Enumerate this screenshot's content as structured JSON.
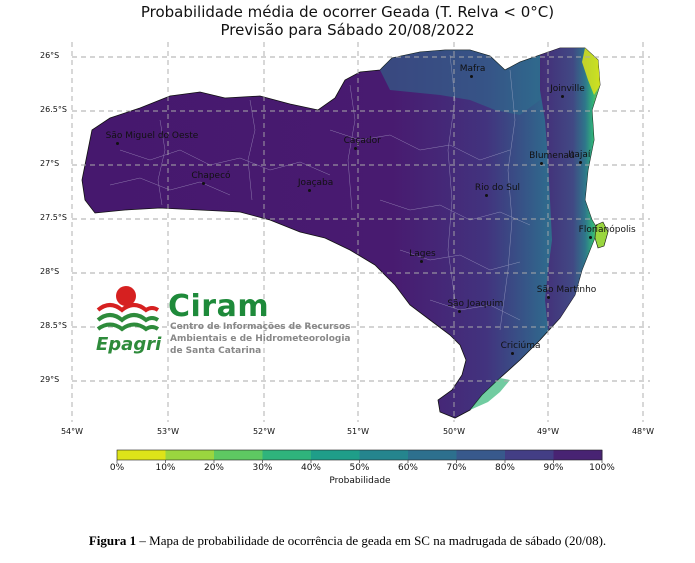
{
  "title_line1": "Probabilidade média de ocorrer Geada (T. Relva < 0°C)",
  "title_line2": "Previsão para Sábado 20/08/2022",
  "lat_ticks": [
    "26°S",
    "26.5°S",
    "27°S",
    "27.5°S",
    "28°S",
    "28.5°S",
    "29°S"
  ],
  "lon_ticks": [
    "54°W",
    "53°W",
    "52°W",
    "51°W",
    "50°W",
    "49°W",
    "48°W"
  ],
  "cities": [
    {
      "name": "Mafra",
      "lon": -49.8,
      "lat": -26.11
    },
    {
      "name": "Joinville",
      "lon": -48.85,
      "lat": -26.3
    },
    {
      "name": "São Miguel do Oeste",
      "lon": -53.52,
      "lat": -26.73
    },
    {
      "name": "Caçador",
      "lon": -51.02,
      "lat": -26.78
    },
    {
      "name": "Blumenau",
      "lon": -49.07,
      "lat": -26.92
    },
    {
      "name": "Itajaí",
      "lon": -48.66,
      "lat": -26.91
    },
    {
      "name": "Chapecó",
      "lon": -52.62,
      "lat": -27.1
    },
    {
      "name": "Joaçaba",
      "lon": -51.5,
      "lat": -27.17
    },
    {
      "name": "Rio do Sul",
      "lon": -49.64,
      "lat": -27.21
    },
    {
      "name": "Florianópolis",
      "lon": -48.55,
      "lat": -27.6
    },
    {
      "name": "Lages",
      "lon": -50.33,
      "lat": -27.82
    },
    {
      "name": "São Martinho",
      "lon": -48.99,
      "lat": -28.16
    },
    {
      "name": "São Joaquim",
      "lon": -49.93,
      "lat": -28.29
    },
    {
      "name": "Criciúma",
      "lon": -49.37,
      "lat": -28.68
    }
  ],
  "colorbar": {
    "labels": [
      "0%",
      "10%",
      "20%",
      "30%",
      "40%",
      "50%",
      "60%",
      "70%",
      "80%",
      "90%",
      "100%"
    ],
    "colors": [
      "#dde319",
      "#9ad63f",
      "#5ec962",
      "#2fb47c",
      "#1f9e89",
      "#25858e",
      "#2d708e",
      "#38598c",
      "#433e85",
      "#482373"
    ],
    "title": "Probabilidade"
  },
  "logo": {
    "brand": "Ciram",
    "line1": "Centro de Informações de Recursos",
    "line2": "Ambientais e de Hidrometeorologia",
    "line3": "de Santa Catarina",
    "epagri": "Epagri"
  },
  "caption": {
    "label": "Figura 1",
    "text": " – Mapa de probabilidade de ocorrência de geada em SC na madrugada de sábado (20/08)."
  }
}
